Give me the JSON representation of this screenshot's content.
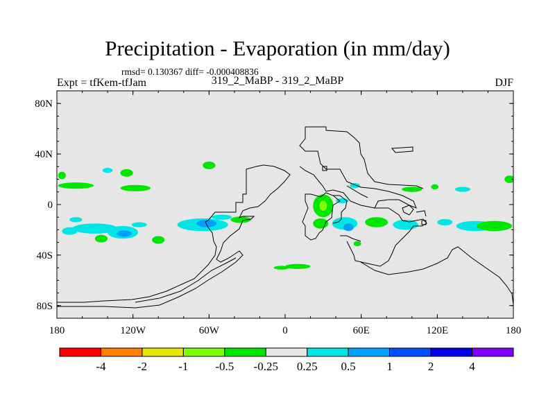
{
  "chart_data": {
    "type": "heatmap",
    "title": "Precipitation - Evaporation (in mm/day)",
    "stats_text": "rmsd= 0.130367  diff= -0.000408836",
    "left_label": "Expt = tfKem-tfJam",
    "center_label": "319_2_MaBP - 319_2_MaBP",
    "right_label": "DJF",
    "xlim": [
      -180,
      180
    ],
    "ylim": [
      -90,
      90
    ],
    "x_ticks": [
      {
        "value": -180,
        "label": "180"
      },
      {
        "value": -120,
        "label": "120W"
      },
      {
        "value": -60,
        "label": "60W"
      },
      {
        "value": 0,
        "label": "0"
      },
      {
        "value": 60,
        "label": "60E"
      },
      {
        "value": 120,
        "label": "120E"
      },
      {
        "value": 180,
        "label": "180"
      }
    ],
    "y_ticks": [
      {
        "value": 80,
        "label": "80N"
      },
      {
        "value": 40,
        "label": "40N"
      },
      {
        "value": 0,
        "label": "0"
      },
      {
        "value": -40,
        "label": "40S"
      },
      {
        "value": -80,
        "label": "80S"
      }
    ],
    "colorbar": {
      "colors": [
        "#ff0000",
        "#ff8000",
        "#e6e600",
        "#80ff00",
        "#00e600",
        "#e6e6e6",
        "#00e6e6",
        "#00a0ff",
        "#0050ff",
        "#0000e6",
        "#8000ff"
      ],
      "labels": [
        "-4",
        "-2",
        "-1",
        "-0.5",
        "-0.25",
        "0.25",
        "0.5",
        "1",
        "2",
        "4"
      ]
    },
    "background_color": "#e6e6e6",
    "anomalies": [
      {
        "lon": -176,
        "lat": 23,
        "rx": 3,
        "ry": 3,
        "level": "green"
      },
      {
        "lon": -165,
        "lat": 15,
        "rx": 14,
        "ry": 2.5,
        "level": "green"
      },
      {
        "lon": -140,
        "lat": 27,
        "rx": 4,
        "ry": 2,
        "level": "cyan"
      },
      {
        "lon": -125,
        "lat": 25,
        "rx": 5,
        "ry": 3,
        "level": "green"
      },
      {
        "lon": -118,
        "lat": 13,
        "rx": 12,
        "ry": 2.5,
        "level": "green"
      },
      {
        "lon": -60,
        "lat": 31,
        "rx": 5,
        "ry": 3,
        "level": "green"
      },
      {
        "lon": -170,
        "lat": -21,
        "rx": 6,
        "ry": 3,
        "level": "cyan"
      },
      {
        "lon": -150,
        "lat": -19,
        "rx": 18,
        "ry": 4,
        "level": "cyan"
      },
      {
        "lon": -128,
        "lat": -22,
        "rx": 12,
        "ry": 5,
        "level": "cyan"
      },
      {
        "lon": -127,
        "lat": -23,
        "rx": 6,
        "ry": 2.5,
        "level": "blue"
      },
      {
        "lon": -145,
        "lat": -27,
        "rx": 5,
        "ry": 3,
        "level": "green"
      },
      {
        "lon": -100,
        "lat": -28,
        "rx": 5,
        "ry": 3,
        "level": "green"
      },
      {
        "lon": -115,
        "lat": -16,
        "rx": 6,
        "ry": 2,
        "level": "cyan"
      },
      {
        "lon": -65,
        "lat": -16,
        "rx": 20,
        "ry": 5,
        "level": "cyan"
      },
      {
        "lon": -62,
        "lat": -15,
        "rx": 8,
        "ry": 3,
        "level": "blue"
      },
      {
        "lon": -35,
        "lat": -12,
        "rx": 8,
        "ry": 2.5,
        "level": "green"
      },
      {
        "lon": -50,
        "lat": -10,
        "rx": 8,
        "ry": 2,
        "level": "cyan"
      },
      {
        "lon": -165,
        "lat": -12,
        "rx": 5,
        "ry": 2,
        "level": "cyan"
      },
      {
        "lon": 30,
        "lat": -1,
        "rx": 8,
        "ry": 9,
        "level": "green"
      },
      {
        "lon": 30,
        "lat": -1,
        "rx": 3,
        "ry": 4,
        "level": "yellow"
      },
      {
        "lon": 28,
        "lat": -15,
        "rx": 6,
        "ry": 4,
        "level": "green"
      },
      {
        "lon": 47,
        "lat": -15,
        "rx": 10,
        "ry": 5,
        "level": "cyan"
      },
      {
        "lon": 50,
        "lat": -18,
        "rx": 4,
        "ry": 3,
        "level": "blue"
      },
      {
        "lon": 72,
        "lat": -14,
        "rx": 9,
        "ry": 4,
        "level": "green"
      },
      {
        "lon": 45,
        "lat": 3,
        "rx": 5,
        "ry": 2,
        "level": "cyan"
      },
      {
        "lon": 95,
        "lat": -16,
        "rx": 10,
        "ry": 4,
        "level": "cyan"
      },
      {
        "lon": 100,
        "lat": 12,
        "rx": 8,
        "ry": 2,
        "level": "green"
      },
      {
        "lon": 118,
        "lat": 14,
        "rx": 3,
        "ry": 2,
        "level": "green"
      },
      {
        "lon": 140,
        "lat": 12,
        "rx": 6,
        "ry": 2,
        "level": "cyan"
      },
      {
        "lon": 126,
        "lat": -14,
        "rx": 6,
        "ry": 2.5,
        "level": "cyan"
      },
      {
        "lon": 150,
        "lat": -17,
        "rx": 15,
        "ry": 4,
        "level": "cyan"
      },
      {
        "lon": 165,
        "lat": -17,
        "rx": 14,
        "ry": 4,
        "level": "green"
      },
      {
        "lon": 177,
        "lat": 20,
        "rx": 4,
        "ry": 3,
        "level": "green"
      },
      {
        "lon": 10,
        "lat": -49,
        "rx": 10,
        "ry": 2,
        "level": "green"
      },
      {
        "lon": -3,
        "lat": -50,
        "rx": 6,
        "ry": 1.5,
        "level": "green"
      },
      {
        "lon": 57,
        "lat": -31,
        "rx": 3,
        "ry": 2,
        "level": "green"
      },
      {
        "lon": 55,
        "lat": 15,
        "rx": 4,
        "ry": 2,
        "level": "cyan"
      }
    ]
  }
}
